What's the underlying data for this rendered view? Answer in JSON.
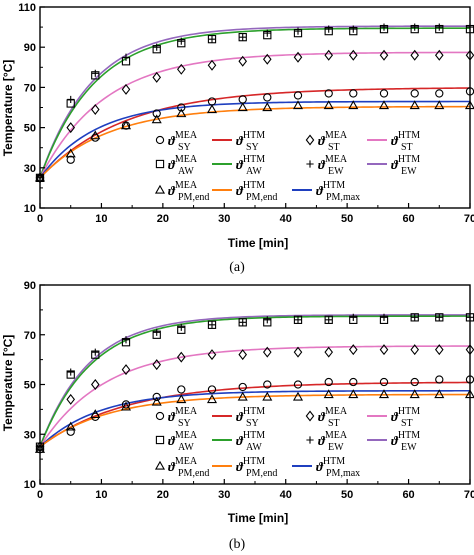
{
  "panels": [
    {
      "caption": "(a)",
      "xlabel": "Time [min]",
      "ylabel": "Temperature [°C]",
      "xlim": [
        0,
        70
      ],
      "ylim": [
        10,
        110
      ],
      "xticks": [
        "0",
        "10",
        "20",
        "30",
        "40",
        "50",
        "60",
        "70"
      ],
      "yticks": [
        "10",
        "30",
        "50",
        "70",
        "90",
        "110"
      ],
      "ytick_values": [
        10,
        30,
        50,
        70,
        90,
        110
      ]
    },
    {
      "caption": "(b)",
      "xlabel": "Time [min]",
      "ylabel": "Temperature [°C]",
      "xlim": [
        0,
        70
      ],
      "ylim": [
        10,
        90
      ],
      "xticks": [
        "0",
        "10",
        "20",
        "30",
        "40",
        "50",
        "60",
        "70"
      ],
      "yticks": [
        "10",
        "30",
        "50",
        "70",
        "90"
      ],
      "ytick_values": [
        10,
        30,
        50,
        70,
        90
      ]
    }
  ],
  "legend": [
    {
      "key": "sy_mea",
      "kind": "marker",
      "marker": "circle",
      "sup": "MEA",
      "sub": "SY"
    },
    {
      "key": "sy_htm",
      "kind": "line",
      "color": "#d62728",
      "sup": "HTM",
      "sub": "SY"
    },
    {
      "key": "st_mea",
      "kind": "marker",
      "marker": "diamond",
      "sup": "MEA",
      "sub": "ST"
    },
    {
      "key": "st_htm",
      "kind": "line",
      "color": "#e377c2",
      "sup": "HTM",
      "sub": "ST"
    },
    {
      "key": "aw_mea",
      "kind": "marker",
      "marker": "square",
      "sup": "MEA",
      "sub": "AW"
    },
    {
      "key": "aw_htm",
      "kind": "line",
      "color": "#2ca02c",
      "sup": "HTM",
      "sub": "AW"
    },
    {
      "key": "ew_mea",
      "kind": "marker",
      "marker": "plus",
      "sup": "MEA",
      "sub": "EW"
    },
    {
      "key": "ew_htm",
      "kind": "line",
      "color": "#9467bd",
      "sup": "HTM",
      "sub": "EW"
    },
    {
      "key": "pme_mea",
      "kind": "marker",
      "marker": "triangle",
      "sup": "MEA",
      "sub": "PM,end"
    },
    {
      "key": "pme_htm",
      "kind": "line",
      "color": "#ff7f0e",
      "sup": "HTM",
      "sub": "PM,end"
    },
    {
      "key": "pmm_htm",
      "kind": "line",
      "color": "#1f3fbf",
      "sup": "HTM",
      "sub": "PM,max"
    }
  ],
  "legend_symbol": "ϑ",
  "chart_data": [
    {
      "type": "line",
      "title": "",
      "xlabel": "Time [min]",
      "ylabel": "Temperature [°C]",
      "xlim": [
        0,
        70
      ],
      "ylim": [
        10,
        110
      ],
      "grid": false,
      "legend_placement": "bottom-right",
      "model_curves": [
        {
          "key": "ew_htm",
          "color": "#9467bd",
          "T0": 25,
          "Tinf": 100.5,
          "tau": 8.5
        },
        {
          "key": "aw_htm",
          "color": "#2ca02c",
          "T0": 25,
          "Tinf": 99.5,
          "tau": 8.8
        },
        {
          "key": "st_htm",
          "color": "#e377c2",
          "T0": 25,
          "Tinf": 87.5,
          "tau": 10.5
        },
        {
          "key": "sy_htm",
          "color": "#d62728",
          "T0": 25,
          "Tinf": 70.0,
          "tau": 14.0
        },
        {
          "key": "pmm_htm",
          "color": "#1f3fbf",
          "T0": 25,
          "Tinf": 63.0,
          "tau": 9.0
        },
        {
          "key": "pme_htm",
          "color": "#ff7f0e",
          "T0": 25,
          "Tinf": 60.5,
          "tau": 11.0
        }
      ],
      "measured": [
        {
          "key": "ew_mea",
          "marker": "plus",
          "x": [
            0,
            5,
            9,
            14,
            19,
            23,
            28,
            33,
            37,
            42,
            47,
            51,
            56,
            61,
            65,
            70
          ],
          "y": [
            25,
            64,
            77,
            85,
            90,
            93,
            94,
            95,
            97,
            98,
            99,
            99,
            100,
            100,
            100,
            100
          ]
        },
        {
          "key": "aw_mea",
          "marker": "square",
          "x": [
            0,
            5,
            9,
            14,
            19,
            23,
            28,
            33,
            37,
            42,
            47,
            51,
            56,
            61,
            65,
            70
          ],
          "y": [
            25,
            62,
            76,
            83,
            89,
            92,
            94,
            95,
            96,
            97,
            98,
            98,
            99,
            99,
            99,
            99
          ]
        },
        {
          "key": "st_mea",
          "marker": "diamond",
          "x": [
            0,
            5,
            9,
            14,
            19,
            23,
            28,
            33,
            37,
            42,
            47,
            51,
            56,
            61,
            65,
            70
          ],
          "y": [
            25,
            50,
            59,
            69,
            75,
            79,
            81,
            83,
            84,
            85,
            86,
            86,
            86,
            86,
            86,
            86
          ]
        },
        {
          "key": "sy_mea",
          "marker": "circle",
          "x": [
            0,
            5,
            9,
            14,
            19,
            23,
            28,
            33,
            37,
            42,
            47,
            51,
            56,
            61,
            65,
            70
          ],
          "y": [
            25,
            34,
            45,
            51,
            57,
            60,
            63,
            64,
            65,
            66,
            67,
            67,
            67,
            67,
            67,
            68
          ]
        },
        {
          "key": "pme_mea",
          "marker": "triangle",
          "x": [
            0,
            5,
            9,
            14,
            19,
            23,
            28,
            33,
            37,
            42,
            47,
            51,
            56,
            61,
            65,
            70
          ],
          "y": [
            25,
            37,
            46,
            51,
            54,
            57,
            59,
            60,
            60,
            61,
            61,
            61,
            61,
            61,
            61,
            61
          ]
        }
      ]
    },
    {
      "type": "line",
      "title": "",
      "xlabel": "Time [min]",
      "ylabel": "Temperature [°C]",
      "xlim": [
        0,
        70
      ],
      "ylim": [
        10,
        90
      ],
      "grid": false,
      "legend_placement": "bottom-right",
      "model_curves": [
        {
          "key": "ew_htm",
          "color": "#9467bd",
          "T0": 25,
          "Tinf": 78.0,
          "tau": 8.0
        },
        {
          "key": "aw_htm",
          "color": "#2ca02c",
          "T0": 25,
          "Tinf": 77.5,
          "tau": 8.3
        },
        {
          "key": "st_htm",
          "color": "#e377c2",
          "T0": 25,
          "Tinf": 65.5,
          "tau": 10.5
        },
        {
          "key": "sy_htm",
          "color": "#d62728",
          "T0": 25,
          "Tinf": 51.0,
          "tau": 14.0
        },
        {
          "key": "pmm_htm",
          "color": "#1f3fbf",
          "T0": 25,
          "Tinf": 47.5,
          "tau": 9.5
        },
        {
          "key": "pme_htm",
          "color": "#ff7f0e",
          "T0": 25,
          "Tinf": 46.0,
          "tau": 11.0
        }
      ],
      "measured": [
        {
          "key": "ew_mea",
          "marker": "plus",
          "x": [
            0,
            5,
            9,
            14,
            19,
            23,
            28,
            33,
            37,
            42,
            47,
            51,
            56,
            61,
            65,
            70
          ],
          "y": [
            25,
            55,
            63,
            68,
            71,
            73,
            74,
            75,
            76,
            76,
            76,
            77,
            77,
            77,
            77,
            77
          ]
        },
        {
          "key": "aw_mea",
          "marker": "square",
          "x": [
            0,
            5,
            9,
            14,
            19,
            23,
            28,
            33,
            37,
            42,
            47,
            51,
            56,
            61,
            65,
            70
          ],
          "y": [
            25,
            54,
            62,
            67,
            70,
            72,
            74,
            75,
            75,
            76,
            76,
            76,
            76,
            77,
            77,
            77
          ]
        },
        {
          "key": "st_mea",
          "marker": "diamond",
          "x": [
            0,
            5,
            9,
            14,
            19,
            23,
            28,
            33,
            37,
            42,
            47,
            51,
            56,
            61,
            65,
            70
          ],
          "y": [
            25,
            44,
            50,
            56,
            58,
            61,
            62,
            62,
            63,
            63,
            63,
            64,
            64,
            64,
            64,
            64
          ]
        },
        {
          "key": "sy_mea",
          "marker": "circle",
          "x": [
            0,
            5,
            9,
            14,
            19,
            23,
            28,
            33,
            37,
            42,
            47,
            51,
            56,
            61,
            65,
            70
          ],
          "y": [
            24,
            31,
            37,
            42,
            45,
            48,
            48,
            49,
            50,
            50,
            51,
            51,
            51,
            51,
            52,
            52
          ]
        },
        {
          "key": "pme_mea",
          "marker": "triangle",
          "x": [
            0,
            5,
            9,
            14,
            19,
            23,
            28,
            33,
            37,
            42,
            47,
            51,
            56,
            61,
            65,
            70
          ],
          "y": [
            24,
            33,
            38,
            41,
            43,
            44,
            44,
            45,
            45,
            45,
            46,
            46,
            46,
            46,
            46,
            46
          ]
        }
      ]
    }
  ]
}
